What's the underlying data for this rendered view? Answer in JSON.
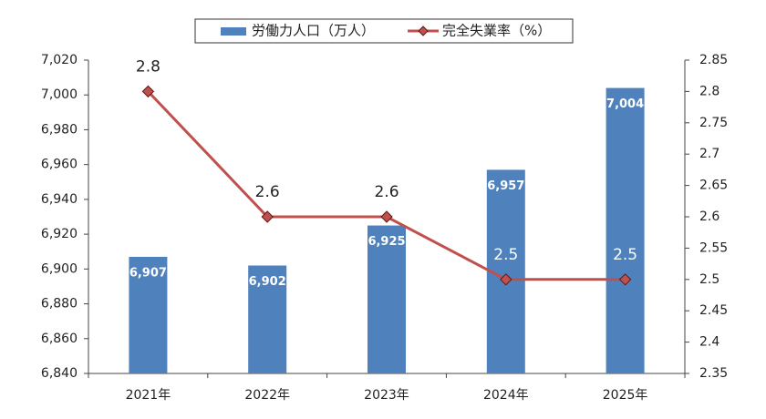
{
  "chart_data": {
    "type": "bar",
    "categories": [
      "2021年",
      "2022年",
      "2023年",
      "2024年",
      "2025年"
    ],
    "series": [
      {
        "name": "労働力人口（万人）",
        "type": "bar",
        "color": "#4f81bd",
        "values": [
          6907,
          6902,
          6925,
          6957,
          7004
        ],
        "value_labels": [
          "6,907",
          "6,902",
          "6,925",
          "6,957",
          "7,004"
        ]
      },
      {
        "name": "完全失業率（%）",
        "type": "line",
        "axis": "y2",
        "color": "#c0504d",
        "values": [
          2.8,
          2.6,
          2.6,
          2.5,
          2.5
        ]
      }
    ],
    "ylim": [
      6840,
      7020
    ],
    "yticks": [
      {
        "value": 6840,
        "label": "6,840"
      },
      {
        "value": 6860,
        "label": "6,860"
      },
      {
        "value": 6880,
        "label": "6,880"
      },
      {
        "value": 6900,
        "label": "6,900"
      },
      {
        "value": 6920,
        "label": "6,920"
      },
      {
        "value": 6940,
        "label": "6,940"
      },
      {
        "value": 6960,
        "label": "6,960"
      },
      {
        "value": 6980,
        "label": "6,980"
      },
      {
        "value": 7000,
        "label": "7,000"
      },
      {
        "value": 7020,
        "label": "7,020"
      }
    ],
    "y2lim": [
      2.35,
      2.85
    ],
    "y2ticks": [
      2.35,
      2.4,
      2.45,
      2.5,
      2.55,
      2.6,
      2.65,
      2.7,
      2.75,
      2.8,
      2.85
    ],
    "legend": "top",
    "grid": false
  }
}
